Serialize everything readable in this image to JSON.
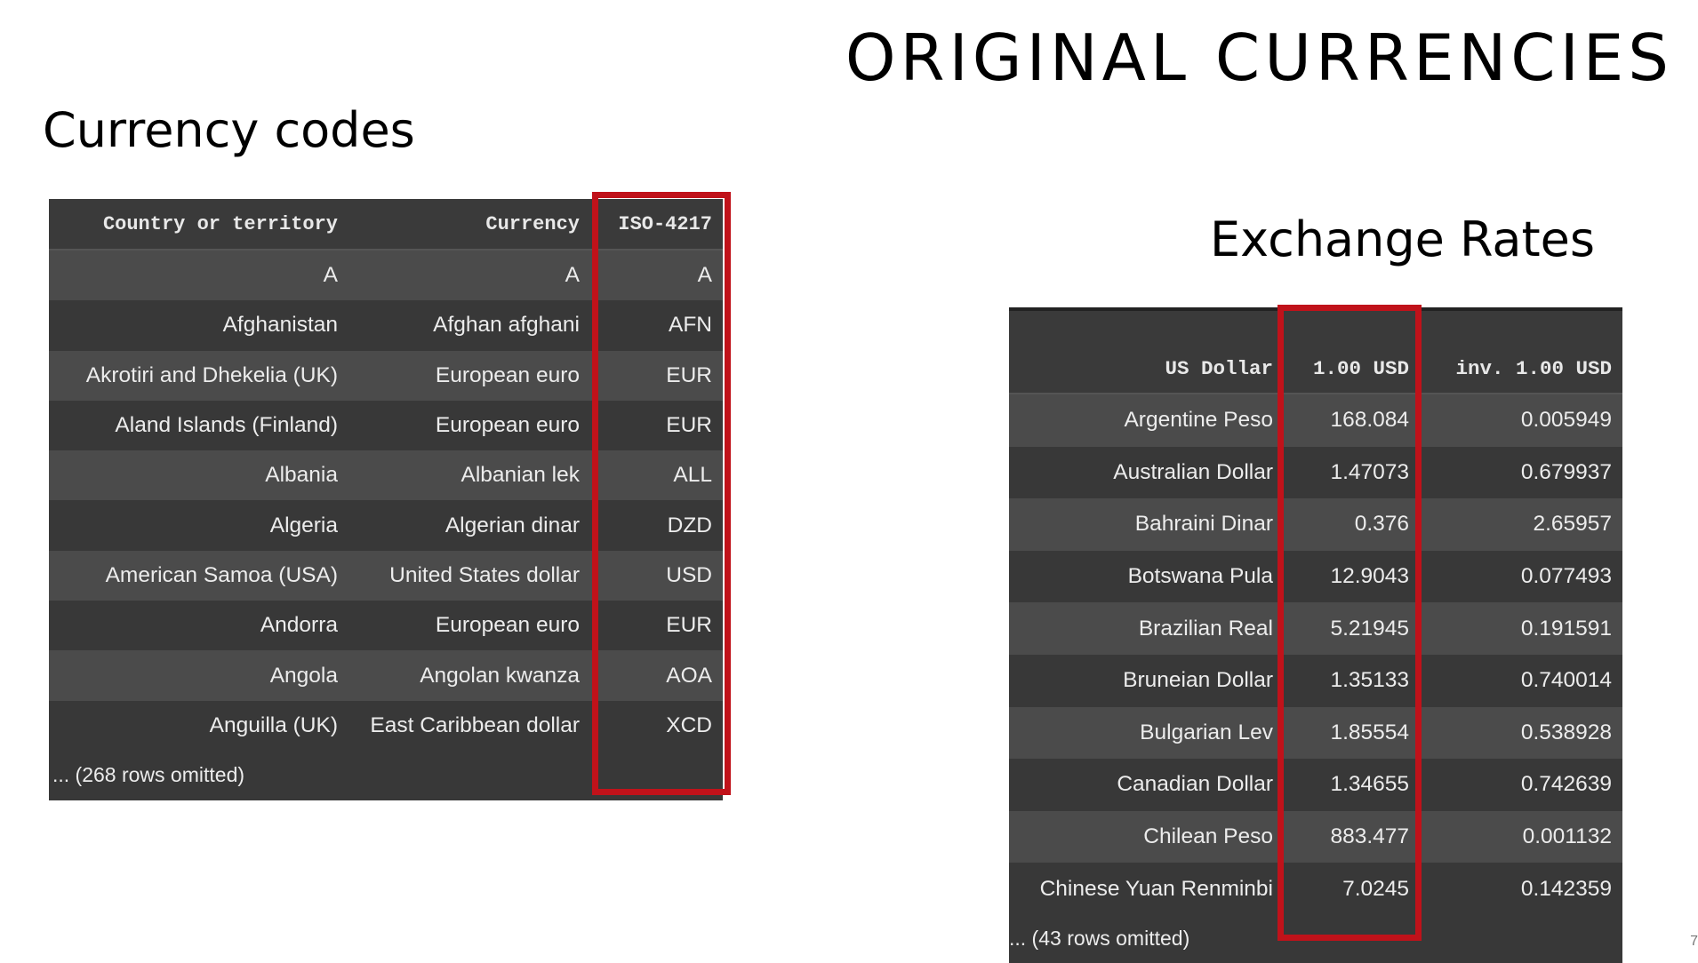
{
  "slide": {
    "title": "ORIGINAL CURRENCIES",
    "page_number": "7"
  },
  "currency_codes": {
    "heading": "Currency codes",
    "columns": [
      "Country or territory",
      "Currency",
      "ISO-4217"
    ],
    "rows": [
      [
        "A",
        "A",
        "A"
      ],
      [
        "Afghanistan",
        "Afghan afghani",
        "AFN"
      ],
      [
        "Akrotiri and Dhekelia (UK)",
        "European euro",
        "EUR"
      ],
      [
        "Aland Islands (Finland)",
        "European euro",
        "EUR"
      ],
      [
        "Albania",
        "Albanian lek",
        "ALL"
      ],
      [
        "Algeria",
        "Algerian dinar",
        "DZD"
      ],
      [
        "American Samoa (USA)",
        "United States dollar",
        "USD"
      ],
      [
        "Andorra",
        "European euro",
        "EUR"
      ],
      [
        "Angola",
        "Angolan kwanza",
        "AOA"
      ],
      [
        "Anguilla (UK)",
        "East Caribbean dollar",
        "XCD"
      ]
    ],
    "footer": "... (268 rows omitted)",
    "highlight_color": "#c0121a"
  },
  "exchange_rates": {
    "heading": "Exchange Rates",
    "columns": [
      "US Dollar",
      "1.00 USD",
      "inv. 1.00 USD"
    ],
    "rows": [
      [
        "Argentine Peso",
        "168.084",
        "0.005949"
      ],
      [
        "Australian Dollar",
        "1.47073",
        "0.679937"
      ],
      [
        "Bahraini Dinar",
        "0.376",
        "2.65957"
      ],
      [
        "Botswana Pula",
        "12.9043",
        "0.077493"
      ],
      [
        "Brazilian Real",
        "5.21945",
        "0.191591"
      ],
      [
        "Bruneian Dollar",
        "1.35133",
        "0.740014"
      ],
      [
        "Bulgarian Lev",
        "1.85554",
        "0.538928"
      ],
      [
        "Canadian Dollar",
        "1.34655",
        "0.742639"
      ],
      [
        "Chilean Peso",
        "883.477",
        "0.001132"
      ],
      [
        "Chinese Yuan Renminbi",
        "7.0245",
        "0.142359"
      ]
    ],
    "footer": "... (43 rows omitted)",
    "highlight_color": "#c0121a"
  }
}
